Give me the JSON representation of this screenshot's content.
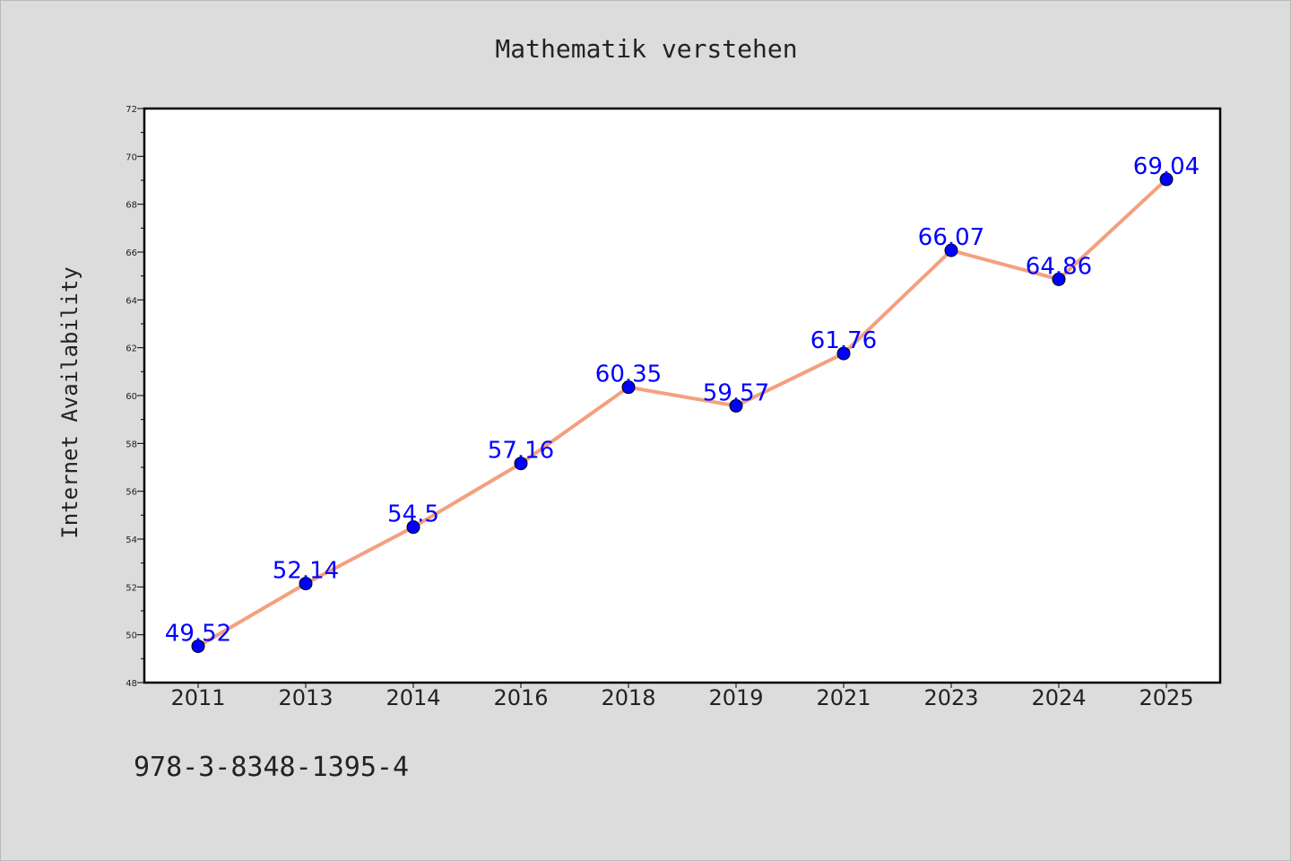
{
  "chart_data": {
    "type": "line",
    "title": "Mathematik verstehen",
    "xlabel": "",
    "ylabel": "Internet Availability",
    "categories": [
      "2011",
      "2013",
      "2014",
      "2016",
      "2018",
      "2019",
      "2021",
      "2023",
      "2024",
      "2025"
    ],
    "series": [
      {
        "values": [
          49.52,
          52.14,
          54.5,
          57.16,
          60.35,
          59.57,
          61.76,
          66.07,
          64.86,
          69.04
        ],
        "data_labels": [
          "49.52",
          "52.14",
          "54.5",
          "57.16",
          "60.35",
          "59.57",
          "61.76",
          "66.07",
          "64.86",
          "69.04"
        ]
      }
    ],
    "ylim": [
      48,
      72
    ],
    "yticks": [
      "48",
      "50",
      "52",
      "54",
      "56",
      "58",
      "60",
      "62",
      "64",
      "66",
      "68",
      "70",
      "72"
    ],
    "grid": false,
    "legend": "none",
    "colors": {
      "line": "#f4a07e",
      "marker": "#0000ff",
      "label": "#0000ff",
      "background": "#dcdcdc",
      "plot_background": "#ffffff"
    }
  },
  "footer_text": "978-3-8348-1395-4"
}
